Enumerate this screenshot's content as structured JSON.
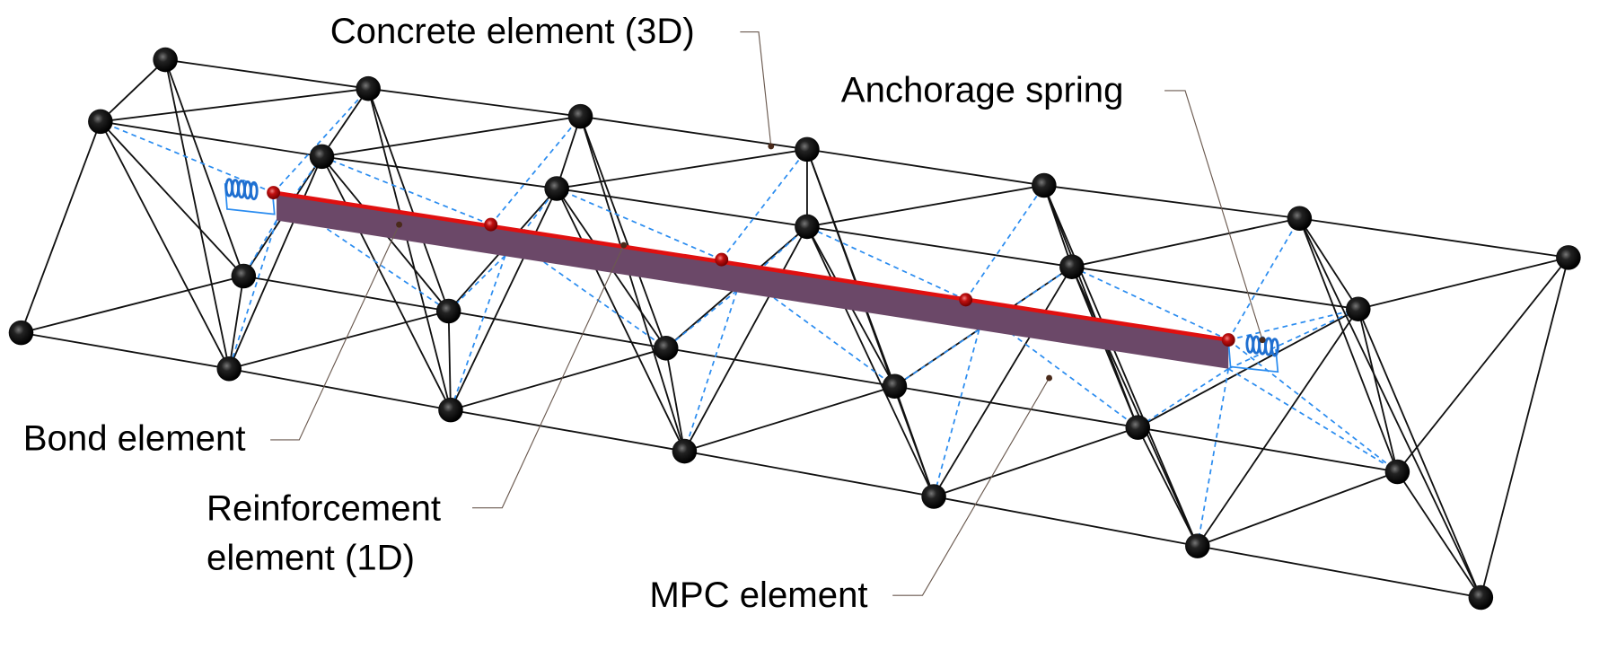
{
  "labels": {
    "concrete": "Concrete element (3D)",
    "anchorage": "Anchorage spring",
    "bond": "Bond element",
    "reinforcement_line1": "Reinforcement",
    "reinforcement_line2": "element (1D)",
    "mpc": "MPC element"
  },
  "colors": {
    "node": "#111111",
    "lattice": "#111111",
    "mpc_dashed": "#2a8cf0",
    "reinforcement": "#e01010",
    "bond": "#6b4868",
    "spring": "#1f6fd0",
    "leader": "#6b5a50"
  }
}
